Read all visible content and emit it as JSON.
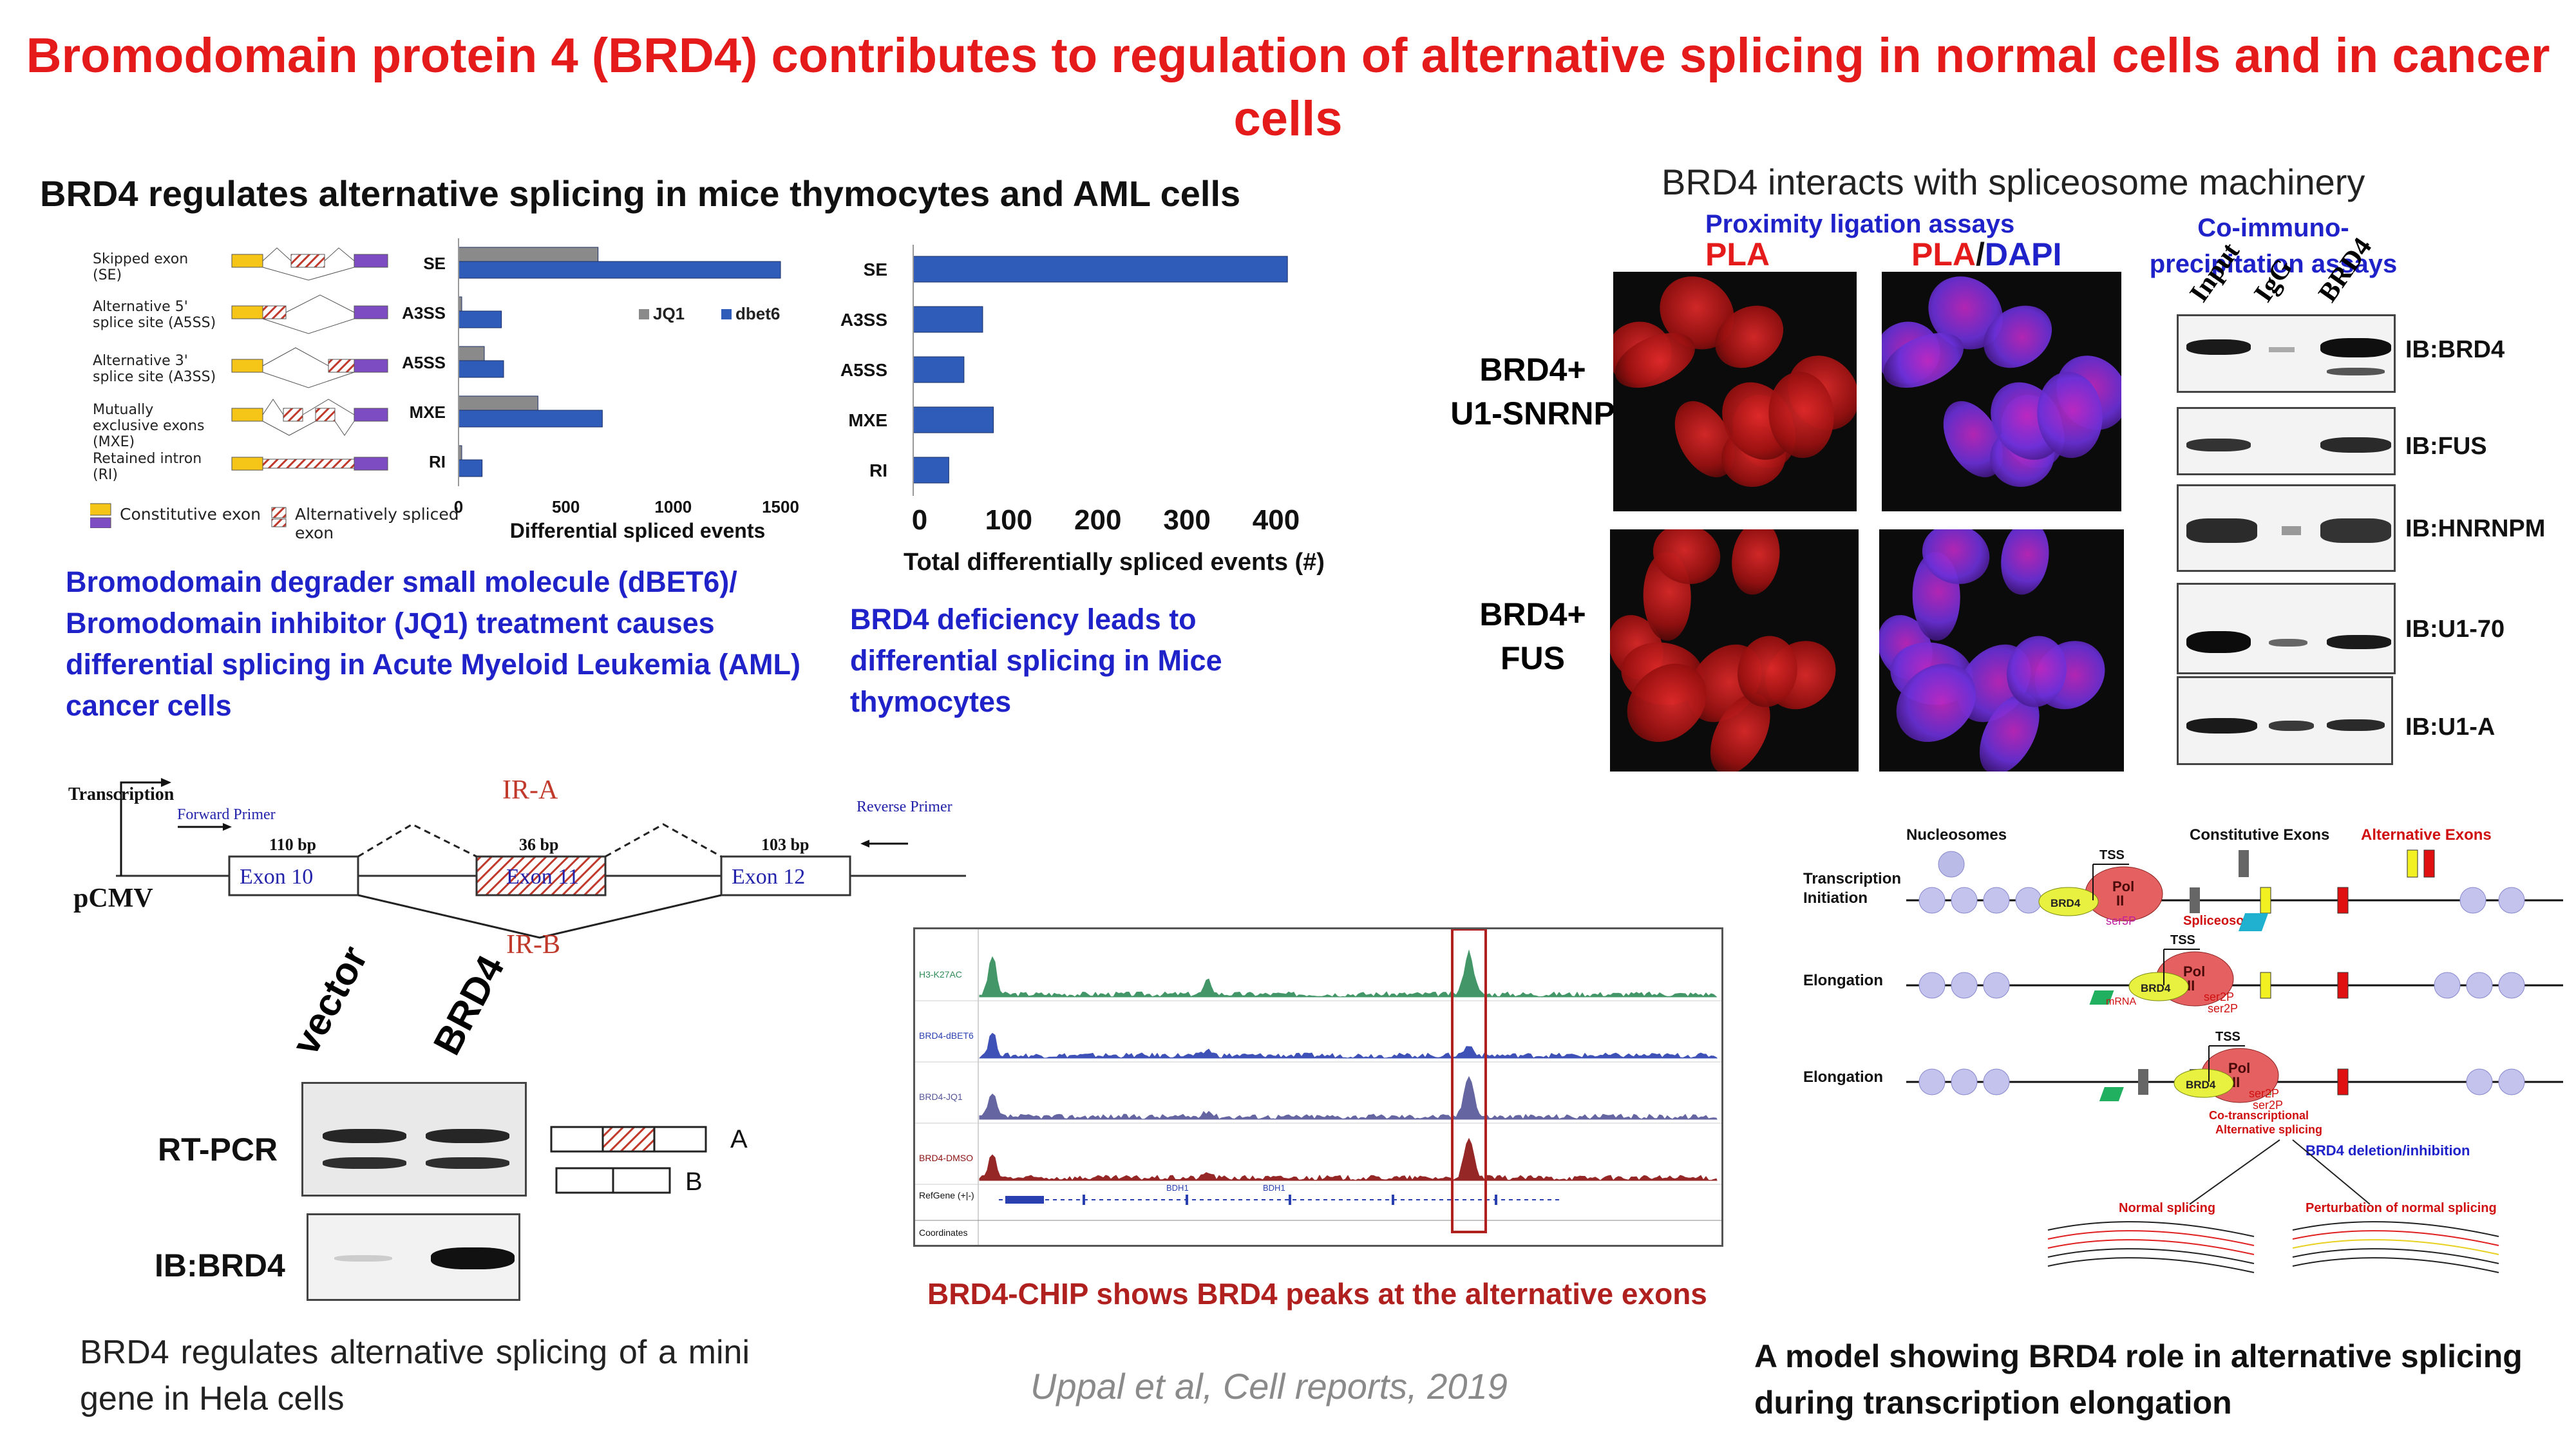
{
  "title": "Bromodomain protein 4 (BRD4) contributes to regulation of alternative splicing in normal cells and in cancer cells",
  "sections": {
    "aml_heading": "BRD4 regulates alternative splicing in mice thymocytes and AML cells",
    "spliceosome_heading": "BRD4 interacts with spliceosome machinery",
    "aml_caption": "Bromodomain degrader small molecule (dBET6)/ Bromodomain inhibitor (JQ1) treatment causes differential splicing in Acute Myeloid Leukemia (AML) cancer cells",
    "mice_caption": "BRD4 deficiency leads to differential splicing in Mice thymocytes",
    "minigene_caption": "BRD4 regulates alternative splicing of a mini gene in Hela cells",
    "chip_caption": "BRD4-CHIP shows BRD4 peaks at the alternative exons",
    "model_caption": "A model showing BRD4 role in alternative splicing during transcription elongation",
    "citation": "Uppal et al, Cell reports, 2019"
  },
  "event_types": [
    {
      "label": "Skipped exon (SE)"
    },
    {
      "label": "Alternative 5' splice site (A5SS)"
    },
    {
      "label": "Alternative 3' splice site (A3SS)"
    },
    {
      "label": "Mutually exclusive exons (MXE)"
    },
    {
      "label": "Retained intron (RI)"
    }
  ],
  "exon_legend": {
    "constitutive": "Constitutive exon",
    "alternative": "Alternatively spliced exon"
  },
  "chart_data": [
    {
      "type": "bar",
      "orientation": "horizontal",
      "categories": [
        "SE",
        "A3SS",
        "A5SS",
        "MXE",
        "RI"
      ],
      "series": [
        {
          "name": "JQ1",
          "values": [
            650,
            15,
            120,
            370,
            15
          ],
          "color": "#8a8a8a"
        },
        {
          "name": "dbet6",
          "values": [
            1500,
            200,
            210,
            670,
            110
          ],
          "color": "#2e5cb8"
        }
      ],
      "xlabel": "Differential spliced events",
      "xticks": [
        "0",
        "500",
        "1000",
        "1500"
      ],
      "xlim": [
        0,
        1500
      ],
      "legend": "top-right"
    },
    {
      "type": "bar",
      "orientation": "horizontal",
      "categories": [
        "SE",
        "A3SS",
        "A5SS",
        "MXE",
        "RI"
      ],
      "series": [
        {
          "values": [
            420,
            78,
            57,
            90,
            40
          ],
          "color": "#2e5cb8"
        }
      ],
      "xlabel": "Total differentially spliced events (#)",
      "xticks": [
        "0",
        "100",
        "200",
        "300",
        "400"
      ],
      "xlim": [
        0,
        430
      ]
    }
  ],
  "pla": {
    "assay_label": "Proximity ligation assays",
    "col1": "PLA",
    "col2a": "PLA",
    "col2sep": "/",
    "col2b": "DAPI",
    "row1a": "BRD4+",
    "row1b": "U1-SNRNP",
    "row2a": "BRD4+",
    "row2b": "FUS"
  },
  "coip": {
    "label": "Co-immuno-precipitation assays",
    "lanes": [
      "Input",
      "IgG",
      "BRD4"
    ],
    "blots": [
      "IB:BRD4",
      "IB:FUS",
      "IB:HNRNPM",
      "IB:U1-70",
      "IB:U1-A"
    ]
  },
  "minigene": {
    "transcription": "Transcription",
    "forward_primer": "Forward Primer",
    "reverse_primer": "Reverse Primer",
    "promoter": "pCMV",
    "exons": [
      {
        "label": "Exon 10",
        "size": "110 bp"
      },
      {
        "label": "Exon 11",
        "size": "36 bp"
      },
      {
        "label": "Exon 12",
        "size": "103 bp"
      }
    ],
    "ir_a": "IR-A",
    "ir_b": "IR-B",
    "lanes": [
      "vector",
      "BRD4"
    ],
    "rtpcr": "RT-PCR",
    "ib": "IB:BRD4",
    "iso_a": "A",
    "iso_b": "B"
  },
  "chip": {
    "tracks": [
      "H3-K27AC",
      "BRD4-dBET6",
      "BRD4-JQ1",
      "BRD4-DMSO"
    ],
    "track_colors": [
      "#2e8b57",
      "#2a3fb0",
      "#555599",
      "#8b1010"
    ],
    "refgene": "RefGene (+|-)",
    "coordinates": "Coordinates",
    "gene": "BDH1"
  },
  "model": {
    "nucleosomes": "Nucleosomes",
    "constitutive_exons": "Constitutive Exons",
    "alternative_exons": "Alternative Exons",
    "row1": "Transcription Initiation",
    "row2": "Elongation",
    "row3": "Elongation",
    "tss": "TSS",
    "pol": "Pol II",
    "brd4": "BRD4",
    "spliceosome": "Spliceosome",
    "mrna": "mRNA",
    "ser5p": "ser5P",
    "ser2p": "ser2P",
    "cotx": "Co-transcriptional Alternative splicing",
    "deletion": "BRD4 deletion/inhibition",
    "normal": "Normal splicing",
    "perturbation": "Perturbation of normal splicing"
  }
}
